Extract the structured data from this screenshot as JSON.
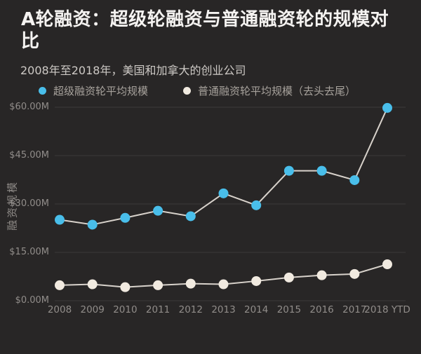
{
  "colors": {
    "background": "#282626",
    "title": "#F5F3F1",
    "subtitle": "#CDC9C5",
    "axis_text": "#918D8A",
    "gridline": "#3C3A3A",
    "connector_line": "#D8D2CB",
    "series_supergiant": "#49BEEA",
    "series_ordinary": "#F1EAE0"
  },
  "chart_data": {
    "type": "line",
    "title": "A轮融资：超级轮融资与普通融资轮的规模对比",
    "subtitle": "2008年至2018年，美国和加拿大的创业公司",
    "ylabel": "融资规模",
    "xlabel": "",
    "grid": true,
    "legend_position": "top",
    "ylim": [
      0,
      60
    ],
    "categories": [
      "2008",
      "2009",
      "2010",
      "2011",
      "2012",
      "2013",
      "2014",
      "2015",
      "2016",
      "2017",
      "2018 YTD"
    ],
    "series": [
      {
        "name": "超级融资轮平均规模",
        "color": "#49BEEA",
        "values": [
          25.1,
          23.6,
          25.7,
          27.9,
          26.2,
          33.3,
          29.6,
          40.3,
          40.3,
          37.4,
          59.8
        ]
      },
      {
        "name": "普通融资轮平均规模（去头去尾）",
        "color": "#F1EAE0",
        "values": [
          4.8,
          5.1,
          4.2,
          4.8,
          5.3,
          5.1,
          6.1,
          7.2,
          7.9,
          8.3,
          11.3
        ]
      }
    ],
    "yticks": [
      {
        "value": 60,
        "label": "$60.00M"
      },
      {
        "value": 45,
        "label": "$45.00M"
      },
      {
        "value": 30,
        "label": "$30.00M"
      },
      {
        "value": 15,
        "label": "$15.00M"
      },
      {
        "value": 0,
        "label": "$0.00M"
      }
    ]
  }
}
